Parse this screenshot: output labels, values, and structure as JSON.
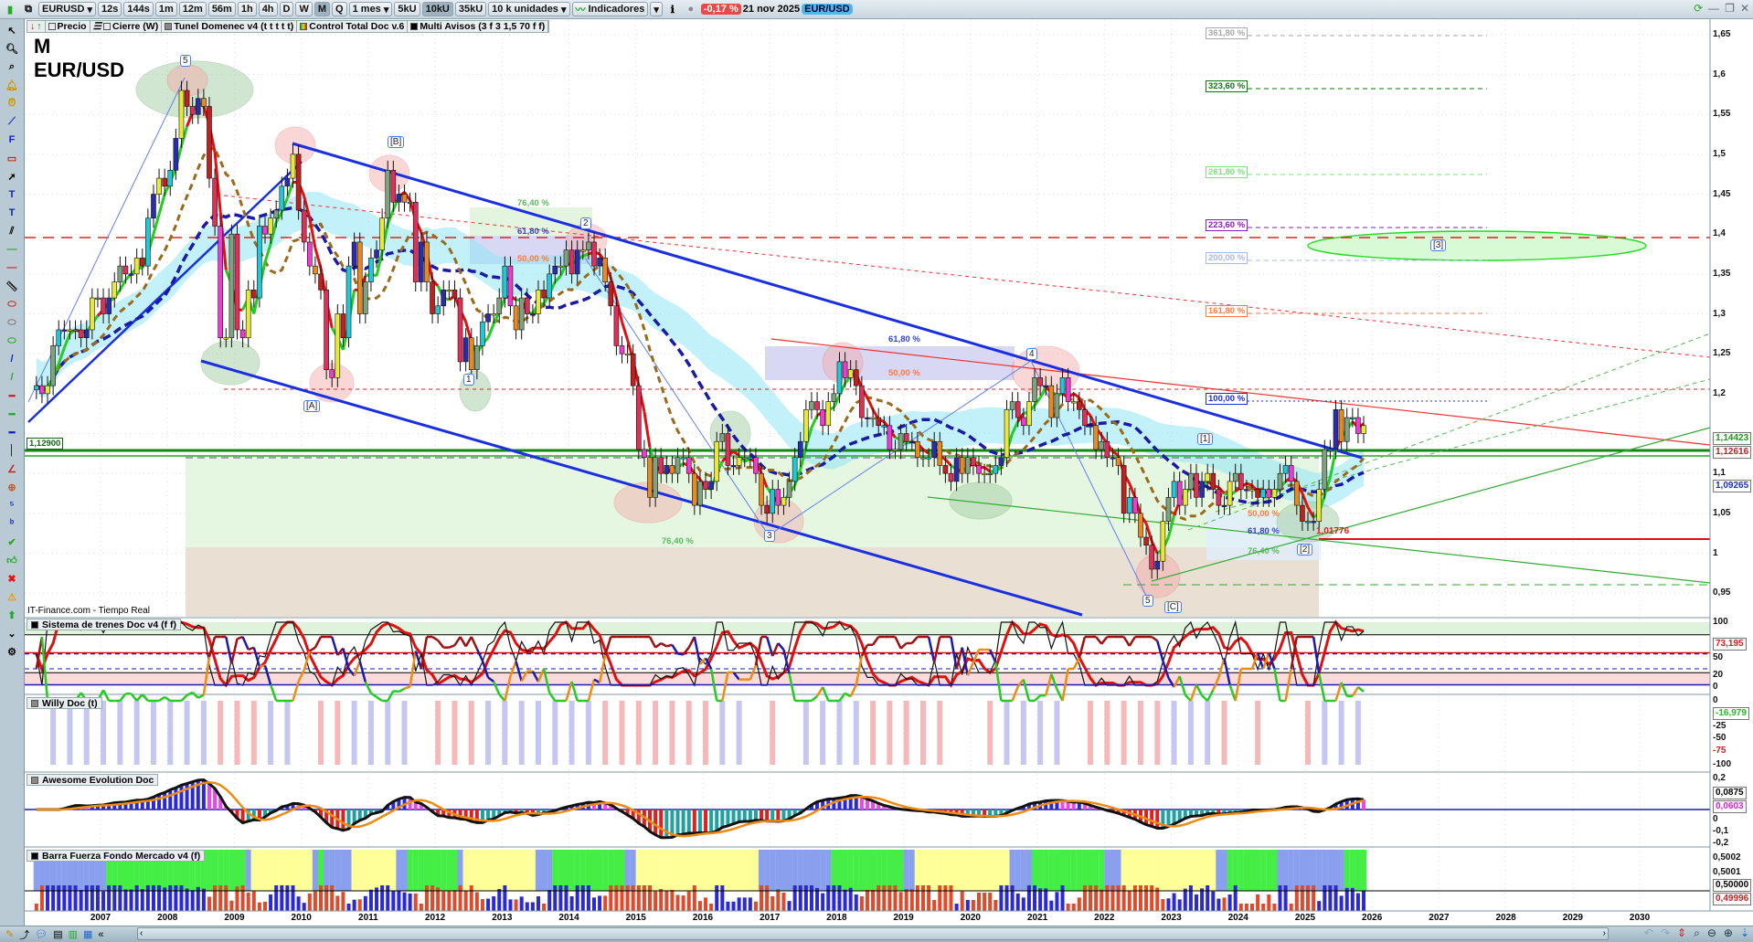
{
  "toolbar": {
    "symbol": "EURUSD",
    "intervals": [
      "12s",
      "144s",
      "1m",
      "12m",
      "56m",
      "1h",
      "4h",
      "D",
      "W",
      "M",
      "Q"
    ],
    "active_interval": "M",
    "period": "1 mes",
    "units": [
      "5kU",
      "10kU",
      "35kU"
    ],
    "active_unit": "10kU",
    "unit_select": "10 k unidades",
    "indicators": "Indicadores",
    "change": "-0,17 %",
    "date": "21 nov 2025",
    "instrument": "EUR/USD"
  },
  "legend": {
    "items": [
      "Precio",
      "Cierre (W)",
      "Tunel Domenec v4 (t t t t t)",
      "Control Total Doc v.6",
      "Multi Avisos (3 f 3 1,5 70 f f)"
    ]
  },
  "main": {
    "timeframe": "M",
    "title": "EUR/USD",
    "source": "IT-Finance.com - Tiempo Real",
    "left_price_label": "1,12900",
    "low_label": "1,01776",
    "price_axis": [
      "1,65",
      "1,6",
      "1,55",
      "1,5",
      "1,45",
      "1,4",
      "1,35",
      "1,3",
      "1,25",
      "1,2",
      "1,1",
      "1,05",
      "1",
      "0,95"
    ],
    "price_badges": [
      {
        "value": "1,14423",
        "color": "#1a9a1a"
      },
      {
        "value": "1,12616",
        "color": "#c02020"
      },
      {
        "value": "1,09265",
        "color": "#1a2fbf"
      }
    ],
    "fib_extensions": [
      {
        "label": "361,80 %",
        "color": "#a8a8a8"
      },
      {
        "label": "323,60 %",
        "color": "#0a7a0a"
      },
      {
        "label": "261,80 %",
        "color": "#7ee07e"
      },
      {
        "label": "223,60 %",
        "color": "#8a1ac0"
      },
      {
        "label": "200,00 %",
        "color": "#a6b8f0"
      },
      {
        "label": "161,80 %",
        "color": "#ff7a40"
      },
      {
        "label": "100,00 %",
        "color": "#1a2fe0"
      }
    ],
    "fib_retracements": {
      "r2014": [
        "76,40 %",
        "61,80 %",
        "50,00 %"
      ],
      "r2018": [
        "61,80 %",
        "50,00 %"
      ],
      "r2016": "76,40 %",
      "r2024": [
        "50,00 %",
        "61,80 %",
        "76,40 %"
      ]
    },
    "waves": [
      "5",
      "[B]",
      "[A]",
      "1",
      "2",
      "3",
      "4",
      "5",
      "[C]",
      "[1]",
      "[2]",
      "[3]"
    ]
  },
  "panels": {
    "sistema": {
      "title": "Sistema de trenes Doc v4 (f f)",
      "axis": [
        "100",
        "73,195",
        "50",
        "20",
        "0"
      ]
    },
    "willy": {
      "title": "Willy Doc (t)",
      "axis": [
        "0",
        "-16,979",
        "-25",
        "-50",
        "-75",
        "-100"
      ]
    },
    "awesome": {
      "title": "Awesome Evolution Doc",
      "axis": [
        "0,2",
        "0,0875",
        "0,0603",
        "0",
        "-0,1",
        "-0,2"
      ]
    },
    "barra": {
      "title": "Barra Fuerza Fondo Mercado v4 (f)",
      "axis": [
        "0,5002",
        "0,5001",
        "0,50000",
        "0,49996"
      ]
    }
  },
  "time_axis": [
    "2007",
    "2008",
    "2009",
    "2010",
    "2011",
    "2012",
    "2013",
    "2014",
    "2015",
    "2016",
    "2017",
    "2018",
    "2019",
    "2020",
    "2021",
    "2022",
    "2023",
    "2024",
    "2025",
    "2026",
    "2027",
    "2028",
    "2029",
    "2030"
  ],
  "chart_data": {
    "type": "candlestick",
    "symbol": "EUR/USD",
    "interval": "monthly",
    "start": "2006-01",
    "ylim": [
      0.93,
      1.66
    ],
    "xlim": [
      "2006-01",
      "2030-12"
    ],
    "close": [
      1.21,
      1.2,
      1.21,
      1.26,
      1.28,
      1.28,
      1.28,
      1.28,
      1.27,
      1.28,
      1.32,
      1.32,
      1.3,
      1.32,
      1.34,
      1.36,
      1.35,
      1.35,
      1.37,
      1.36,
      1.42,
      1.45,
      1.47,
      1.46,
      1.48,
      1.52,
      1.58,
      1.56,
      1.55,
      1.57,
      1.56,
      1.47,
      1.41,
      1.27,
      1.27,
      1.4,
      1.28,
      1.27,
      1.33,
      1.32,
      1.41,
      1.4,
      1.42,
      1.43,
      1.46,
      1.47,
      1.5,
      1.43,
      1.39,
      1.36,
      1.35,
      1.33,
      1.23,
      1.22,
      1.3,
      1.27,
      1.36,
      1.39,
      1.3,
      1.34,
      1.37,
      1.38,
      1.42,
      1.48,
      1.44,
      1.45,
      1.44,
      1.44,
      1.34,
      1.39,
      1.34,
      1.3,
      1.31,
      1.33,
      1.33,
      1.32,
      1.24,
      1.27,
      1.23,
      1.26,
      1.29,
      1.3,
      1.3,
      1.32,
      1.36,
      1.31,
      1.28,
      1.32,
      1.3,
      1.3,
      1.33,
      1.32,
      1.35,
      1.36,
      1.36,
      1.38,
      1.35,
      1.38,
      1.38,
      1.39,
      1.36,
      1.37,
      1.34,
      1.31,
      1.26,
      1.25,
      1.25,
      1.21,
      1.13,
      1.12,
      1.07,
      1.12,
      1.1,
      1.11,
      1.1,
      1.12,
      1.12,
      1.1,
      1.06,
      1.09,
      1.08,
      1.09,
      1.14,
      1.15,
      1.11,
      1.11,
      1.12,
      1.12,
      1.12,
      1.1,
      1.06,
      1.05,
      1.08,
      1.06,
      1.07,
      1.09,
      1.12,
      1.14,
      1.18,
      1.19,
      1.18,
      1.16,
      1.19,
      1.2,
      1.24,
      1.22,
      1.23,
      1.21,
      1.17,
      1.17,
      1.17,
      1.16,
      1.16,
      1.13,
      1.13,
      1.15,
      1.14,
      1.14,
      1.12,
      1.12,
      1.12,
      1.14,
      1.11,
      1.1,
      1.09,
      1.12,
      1.1,
      1.12,
      1.11,
      1.1,
      1.1,
      1.1,
      1.11,
      1.12,
      1.18,
      1.19,
      1.17,
      1.16,
      1.19,
      1.22,
      1.21,
      1.21,
      1.17,
      1.2,
      1.22,
      1.19,
      1.19,
      1.18,
      1.16,
      1.16,
      1.13,
      1.14,
      1.12,
      1.12,
      1.11,
      1.05,
      1.07,
      1.05,
      1.02,
      1.01,
      0.98,
      0.99,
      1.04,
      1.07,
      1.09,
      1.06,
      1.08,
      1.1,
      1.07,
      1.09,
      1.1,
      1.08,
      1.06,
      1.06,
      1.09,
      1.1,
      1.08,
      1.08,
      1.08,
      1.07,
      1.08,
      1.07,
      1.08,
      1.1,
      1.11,
      1.09,
      1.06,
      1.04,
      1.04,
      1.04,
      1.08,
      1.13,
      1.13,
      1.18,
      1.14,
      1.17,
      1.17,
      1.15,
      1.16
    ],
    "last": 1.14423,
    "horizontal_levels": [
      1.129,
      1.12616,
      1.01776,
      1.4,
      1.205
    ]
  },
  "colors": {
    "up": "#22c7d8",
    "down": "#e0305a",
    "fast_ma": "#e01010",
    "mid_ma": "#9a6a1a",
    "slow_ma": "#1a1aa8",
    "channel": "#1a2fe0",
    "support": "#1a8a1a"
  }
}
